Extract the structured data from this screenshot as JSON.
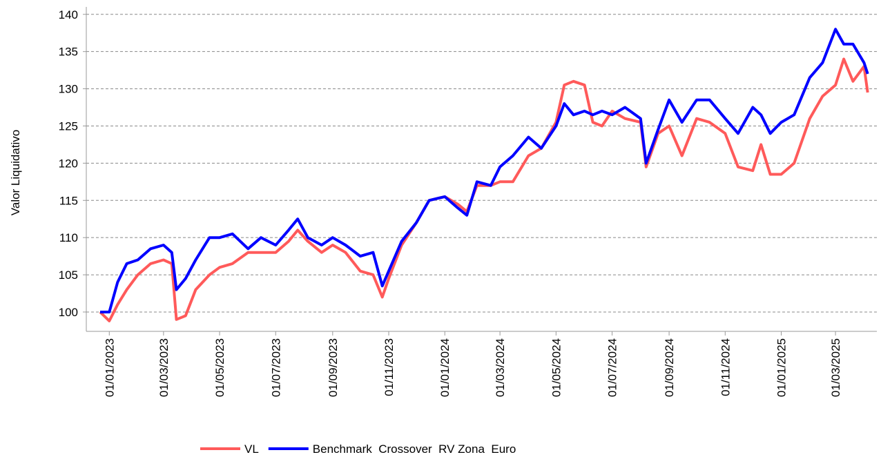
{
  "chart_data": {
    "type": "line",
    "y_label": "Valor Liquidativo",
    "x": [
      "2022-12-22",
      "2023-01-01",
      "2023-01-10",
      "2023-01-20",
      "2023-02-01",
      "2023-02-15",
      "2023-03-01",
      "2023-03-10",
      "2023-03-15",
      "2023-03-25",
      "2023-04-05",
      "2023-04-20",
      "2023-05-01",
      "2023-05-15",
      "2023-06-01",
      "2023-06-15",
      "2023-07-01",
      "2023-07-15",
      "2023-07-25",
      "2023-08-05",
      "2023-08-20",
      "2023-09-01",
      "2023-09-15",
      "2023-10-01",
      "2023-10-15",
      "2023-10-25",
      "2023-11-01",
      "2023-11-15",
      "2023-12-01",
      "2023-12-15",
      "2024-01-01",
      "2024-01-15",
      "2024-01-25",
      "2024-02-05",
      "2024-02-20",
      "2024-03-01",
      "2024-03-15",
      "2024-04-01",
      "2024-04-15",
      "2024-05-01",
      "2024-05-10",
      "2024-05-20",
      "2024-06-01",
      "2024-06-10",
      "2024-06-20",
      "2024-07-01",
      "2024-07-15",
      "2024-08-01",
      "2024-08-07",
      "2024-08-20",
      "2024-09-01",
      "2024-09-15",
      "2024-10-01",
      "2024-10-15",
      "2024-11-01",
      "2024-11-15",
      "2024-12-01",
      "2024-12-10",
      "2024-12-20",
      "2025-01-01",
      "2025-01-15",
      "2025-02-01",
      "2025-02-15",
      "2025-03-01",
      "2025-03-10",
      "2025-03-20",
      "2025-04-01",
      "2025-04-05"
    ],
    "series": [
      {
        "name": "VL",
        "color": "#ff5a5a",
        "values": [
          100,
          98.8,
          101,
          103,
          105,
          106.5,
          107,
          106.5,
          99,
          99.5,
          103,
          105,
          106,
          106.5,
          108,
          108,
          108,
          109.5,
          111,
          109.5,
          108,
          109,
          108,
          105.5,
          105,
          102,
          104.5,
          109,
          112,
          115,
          115.5,
          114.5,
          113.5,
          117,
          117,
          117.5,
          117.5,
          121,
          122,
          125.5,
          130.5,
          131,
          130.5,
          125.5,
          125,
          127,
          126,
          125.5,
          119.5,
          124,
          125,
          121,
          126,
          125.5,
          124,
          119.5,
          119,
          122.5,
          118.5,
          118.5,
          120,
          126,
          129,
          130.5,
          134,
          131,
          133,
          129.5
        ]
      },
      {
        "name": "Benchmark  Crossover  RV Zona  Euro",
        "color": "#0000ff",
        "values": [
          100,
          100,
          104,
          106.5,
          107,
          108.5,
          109,
          108,
          103,
          104.5,
          107,
          110,
          110,
          110.5,
          108.5,
          110,
          109,
          111,
          112.5,
          110,
          109,
          110,
          109,
          107.5,
          108,
          103.5,
          105.5,
          109.5,
          112,
          115,
          115.5,
          114,
          113,
          117.5,
          117,
          119.5,
          121,
          123.5,
          122,
          125,
          128,
          126.5,
          127,
          126.5,
          127,
          126.5,
          127.5,
          126,
          120,
          124.5,
          128.5,
          125.5,
          128.5,
          128.5,
          126,
          124,
          127.5,
          126.5,
          124,
          125.5,
          126.5,
          131.5,
          133.5,
          138,
          136,
          136,
          133.5,
          132
        ]
      }
    ],
    "xlim": [
      "2022-12-07",
      "2025-04-15"
    ],
    "xticks": [
      {
        "value": "2023-01-01",
        "label": "01/01/2023"
      },
      {
        "value": "2023-03-01",
        "label": "01/03/2023"
      },
      {
        "value": "2023-05-01",
        "label": "01/05/2023"
      },
      {
        "value": "2023-07-01",
        "label": "01/07/2023"
      },
      {
        "value": "2023-09-01",
        "label": "01/09/2023"
      },
      {
        "value": "2023-11-01",
        "label": "01/11/2023"
      },
      {
        "value": "2024-01-01",
        "label": "01/01/2024"
      },
      {
        "value": "2024-03-01",
        "label": "01/03/2024"
      },
      {
        "value": "2024-05-01",
        "label": "01/05/2024"
      },
      {
        "value": "2024-07-01",
        "label": "01/07/2024"
      },
      {
        "value": "2024-09-01",
        "label": "01/09/2024"
      },
      {
        "value": "2024-11-01",
        "label": "01/11/2024"
      },
      {
        "value": "2025-01-01",
        "label": "01/01/2025"
      },
      {
        "value": "2025-03-01",
        "label": "01/03/2025"
      }
    ],
    "ylim": [
      97.4,
      141
    ],
    "yticks": [
      100,
      105,
      110,
      115,
      120,
      125,
      130,
      135,
      140
    ],
    "grid": true
  }
}
